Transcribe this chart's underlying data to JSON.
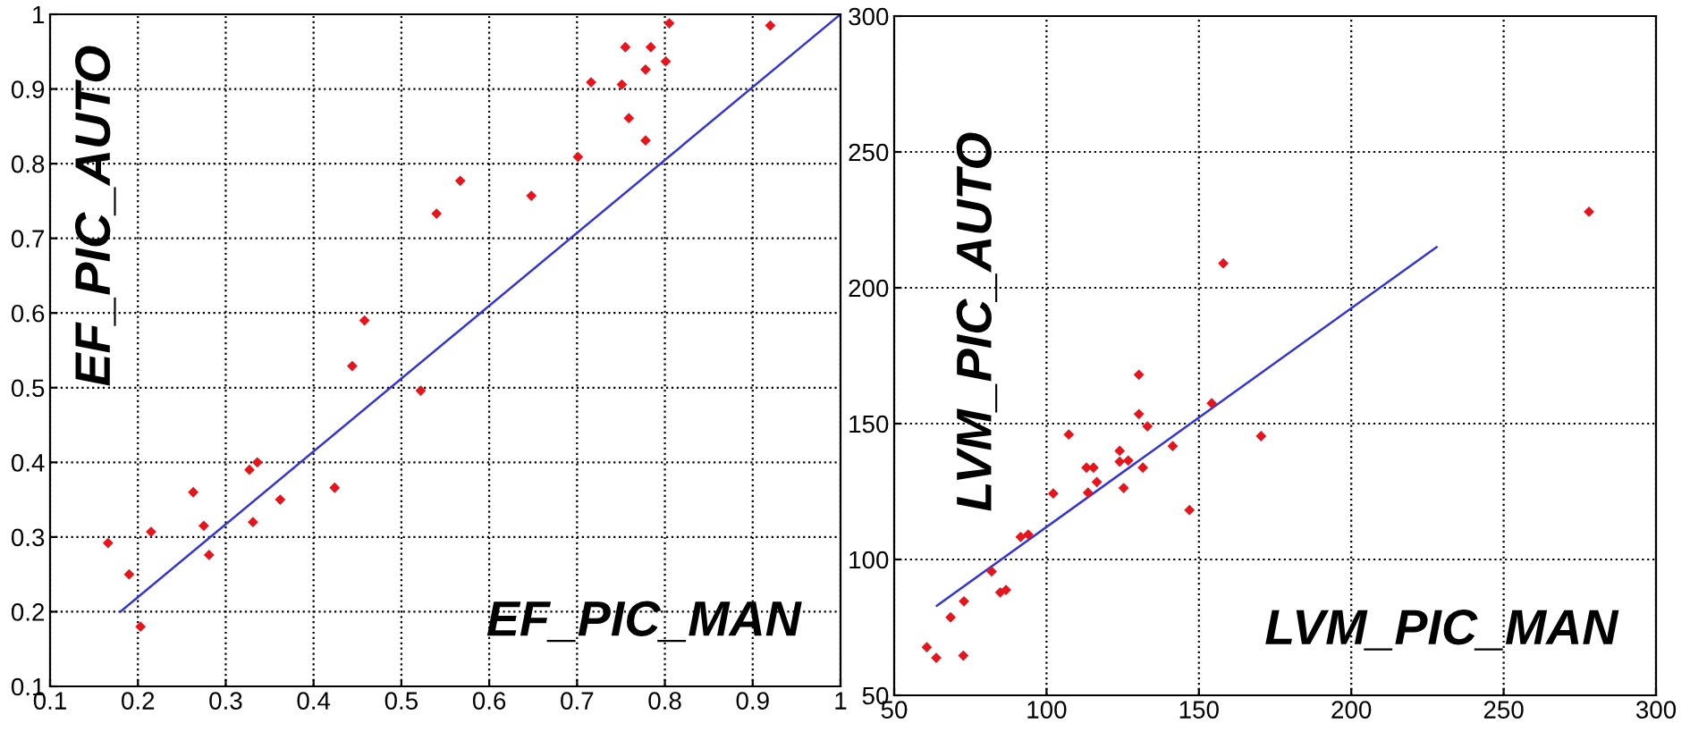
{
  "chart_data": [
    {
      "type": "scatter",
      "xlabel": "EF_PIC_MAN",
      "ylabel": "EF_PIC_AUTO",
      "xlim": [
        0.1,
        1
      ],
      "ylim": [
        0.1,
        1
      ],
      "xticks": [
        0.1,
        0.2,
        0.3,
        0.4,
        0.5,
        0.6,
        0.7,
        0.8,
        0.9,
        1
      ],
      "yticks": [
        0.1,
        0.2,
        0.3,
        0.4,
        0.5,
        0.6,
        0.7,
        0.8,
        0.9,
        1
      ],
      "grid": true,
      "series": [
        {
          "color": "#e8141c",
          "marker": "diamond",
          "x": [
            0.92,
            0.805,
            0.755,
            0.784,
            0.801,
            0.778,
            0.716,
            0.751,
            0.759,
            0.778,
            0.701,
            0.648,
            0.567,
            0.54,
            0.458,
            0.444,
            0.522,
            0.424,
            0.362,
            0.336,
            0.327,
            0.331,
            0.281,
            0.275,
            0.263,
            0.215,
            0.19,
            0.166,
            0.203
          ],
          "values": [
            0.985,
            0.988,
            0.956,
            0.956,
            0.937,
            0.926,
            0.909,
            0.906,
            0.861,
            0.831,
            0.809,
            0.757,
            0.777,
            0.733,
            0.59,
            0.529,
            0.496,
            0.366,
            0.35,
            0.4,
            0.39,
            0.32,
            0.276,
            0.315,
            0.36,
            0.307,
            0.25,
            0.292,
            0.18
          ]
        },
        {
          "type": "line",
          "color": "#3333dd",
          "x": [
            0.18,
            1.0
          ],
          "values": [
            0.2,
            1.0
          ]
        }
      ]
    },
    {
      "type": "scatter",
      "xlabel": "LVM_PIC_MAN",
      "ylabel": "LVM_PIC_AUTO",
      "xlim": [
        50,
        300
      ],
      "ylim": [
        50,
        300
      ],
      "xticks": [
        50,
        100,
        150,
        200,
        250,
        300
      ],
      "yticks": [
        50,
        100,
        150,
        200,
        250,
        300
      ],
      "grid": true,
      "series": [
        {
          "color": "#e8141c",
          "marker": "diamond",
          "x": [
            278,
            158,
            130.3,
            130.3,
            133.1,
            154.2,
            170.4,
            141.4,
            146.9,
            107.3,
            124,
            124,
            126.8,
            131.6,
            113.1,
            115.4,
            116.5,
            113.6,
            125.3,
            102.2,
            91.5,
            94,
            82,
            84.8,
            86.7,
            72.9,
            68.5,
            60.7,
            63.8,
            72.7
          ],
          "values": [
            228,
            209,
            168,
            153.5,
            149,
            157.5,
            145.4,
            141.7,
            118.2,
            146,
            140,
            136,
            136.4,
            133.8,
            133.8,
            133.8,
            128.5,
            124.6,
            126.3,
            124.3,
            108.3,
            109.2,
            95.6,
            87.9,
            88.8,
            84.6,
            78.7,
            67.7,
            63.8,
            64.6
          ]
        },
        {
          "type": "line",
          "color": "#3333dd",
          "x": [
            64,
            228
          ],
          "values": [
            83,
            215
          ]
        }
      ]
    }
  ]
}
